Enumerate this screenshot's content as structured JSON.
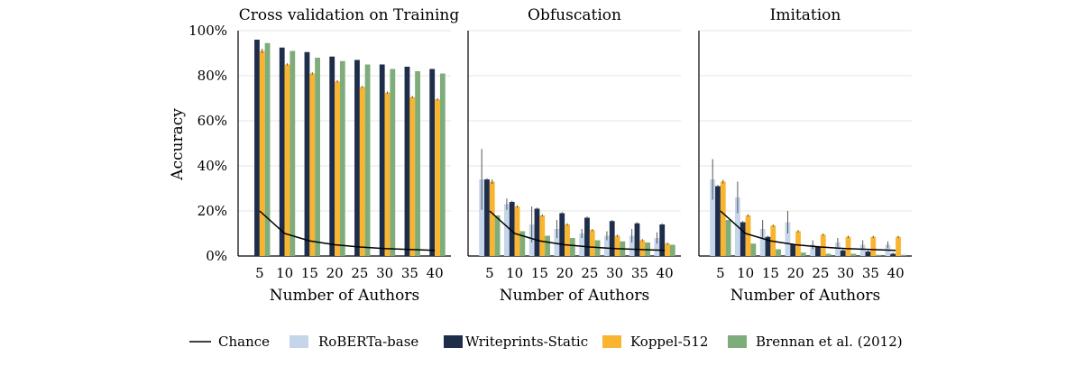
{
  "figure": {
    "ylabel": "Accuracy",
    "yticks": [
      "0%",
      "20%",
      "40%",
      "60%",
      "80%",
      "100%"
    ]
  },
  "legend": [
    {
      "key": "chance",
      "label": "Chance",
      "kind": "line",
      "color": "#000000"
    },
    {
      "key": "roberta",
      "label": "RoBERTa-base",
      "kind": "bar",
      "color": "#c5d5ea"
    },
    {
      "key": "writeprints",
      "label": "Writeprints-Static",
      "kind": "bar",
      "color": "#1e2d4a"
    },
    {
      "key": "koppel",
      "label": "Koppel-512",
      "kind": "bar",
      "color": "#f9b530"
    },
    {
      "key": "brennan",
      "label": "Brennan et al. (2012)",
      "kind": "bar",
      "color": "#7fac7b"
    }
  ],
  "chart_data": [
    {
      "type": "bar",
      "title": "Cross validation on Training",
      "xlabel": "Number of Authors",
      "ylabel": "Accuracy",
      "ylim": [
        0,
        100
      ],
      "y_unit": "%",
      "grid": "horizontal",
      "categories": [
        "5",
        "10",
        "15",
        "20",
        "25",
        "30",
        "35",
        "40"
      ],
      "chance": [
        20,
        10,
        6.7,
        5,
        4,
        3.3,
        2.9,
        2.5
      ],
      "series": [
        {
          "name": "RoBERTa-base",
          "values": [
            null,
            null,
            null,
            null,
            null,
            null,
            null,
            null
          ],
          "errors": [
            0,
            0,
            0,
            0,
            0,
            0,
            0,
            0
          ]
        },
        {
          "name": "Writeprints-Static",
          "values": [
            96,
            92.5,
            90.5,
            88.5,
            87,
            85,
            84,
            83
          ],
          "errors": [
            0,
            0,
            0,
            0,
            0,
            0,
            0,
            0
          ]
        },
        {
          "name": "Koppel-512",
          "values": [
            91,
            85,
            81,
            77.5,
            75,
            72.5,
            70.5,
            69.5
          ],
          "errors": [
            1,
            0.5,
            0.5,
            0.5,
            0.5,
            0.5,
            0.5,
            0.5
          ]
        },
        {
          "name": "Brennan et al. (2012)",
          "values": [
            94.5,
            91,
            88,
            86.5,
            85,
            83,
            82,
            81
          ],
          "errors": [
            0,
            0,
            0,
            0,
            0,
            0,
            0,
            0
          ]
        }
      ]
    },
    {
      "type": "bar",
      "title": "Obfuscation",
      "xlabel": "Number of Authors",
      "ylim": [
        0,
        100
      ],
      "y_unit": "%",
      "grid": "horizontal",
      "categories": [
        "5",
        "10",
        "15",
        "20",
        "25",
        "30",
        "35",
        "40"
      ],
      "chance": [
        20,
        10,
        6.7,
        5,
        4,
        3.3,
        2.9,
        2.5
      ],
      "series": [
        {
          "name": "RoBERTa-base",
          "values": [
            34,
            23,
            14,
            12,
            10,
            9,
            9,
            8
          ],
          "errors": [
            13.5,
            2.5,
            8,
            4,
            2,
            2,
            3,
            2.5
          ]
        },
        {
          "name": "Writeprints-Static",
          "values": [
            34,
            24,
            21,
            19,
            17,
            15.5,
            14.5,
            14
          ],
          "errors": [
            0.5,
            0.5,
            0.5,
            0.5,
            0.5,
            0.5,
            0.5,
            0.5
          ]
        },
        {
          "name": "Koppel-512",
          "values": [
            33,
            22,
            18,
            14,
            11.5,
            9,
            7,
            5.5
          ],
          "errors": [
            1,
            0.5,
            0.5,
            0.5,
            0.5,
            0.5,
            0.5,
            0.5
          ]
        },
        {
          "name": "Brennan et al. (2012)",
          "values": [
            18,
            11,
            9,
            8,
            7,
            6.5,
            6,
            5
          ],
          "errors": [
            0,
            0,
            0,
            0,
            0,
            0,
            0,
            0
          ]
        }
      ]
    },
    {
      "type": "bar",
      "title": "Imitation",
      "xlabel": "Number of Authors",
      "ylim": [
        0,
        100
      ],
      "y_unit": "%",
      "grid": "horizontal",
      "categories": [
        "5",
        "10",
        "15",
        "20",
        "25",
        "30",
        "35",
        "40"
      ],
      "chance": [
        20,
        10,
        6.7,
        5,
        4,
        3.3,
        2.9,
        2.5
      ],
      "series": [
        {
          "name": "RoBERTa-base",
          "values": [
            34,
            26,
            12,
            15,
            5,
            6,
            5,
            5
          ],
          "errors": [
            9,
            7,
            4,
            5,
            2,
            2,
            2,
            1.5
          ]
        },
        {
          "name": "Writeprints-Static",
          "values": [
            31,
            15,
            8.5,
            5,
            4,
            2.5,
            2,
            1
          ],
          "errors": [
            0.5,
            0.5,
            0.5,
            0.5,
            0.5,
            0.5,
            0.5,
            0.5
          ]
        },
        {
          "name": "Koppel-512",
          "values": [
            33,
            18,
            13.5,
            11,
            9.5,
            8.5,
            8.5,
            8.5
          ],
          "errors": [
            0.8,
            0.5,
            0.5,
            0.5,
            0.5,
            0.5,
            0.5,
            0.5
          ]
        },
        {
          "name": "Brennan et al. (2012)",
          "values": [
            16,
            5.5,
            3,
            1.5,
            1,
            1,
            0.5,
            0.5
          ],
          "errors": [
            0,
            0,
            0,
            0,
            0,
            0,
            0,
            0
          ]
        }
      ]
    }
  ]
}
